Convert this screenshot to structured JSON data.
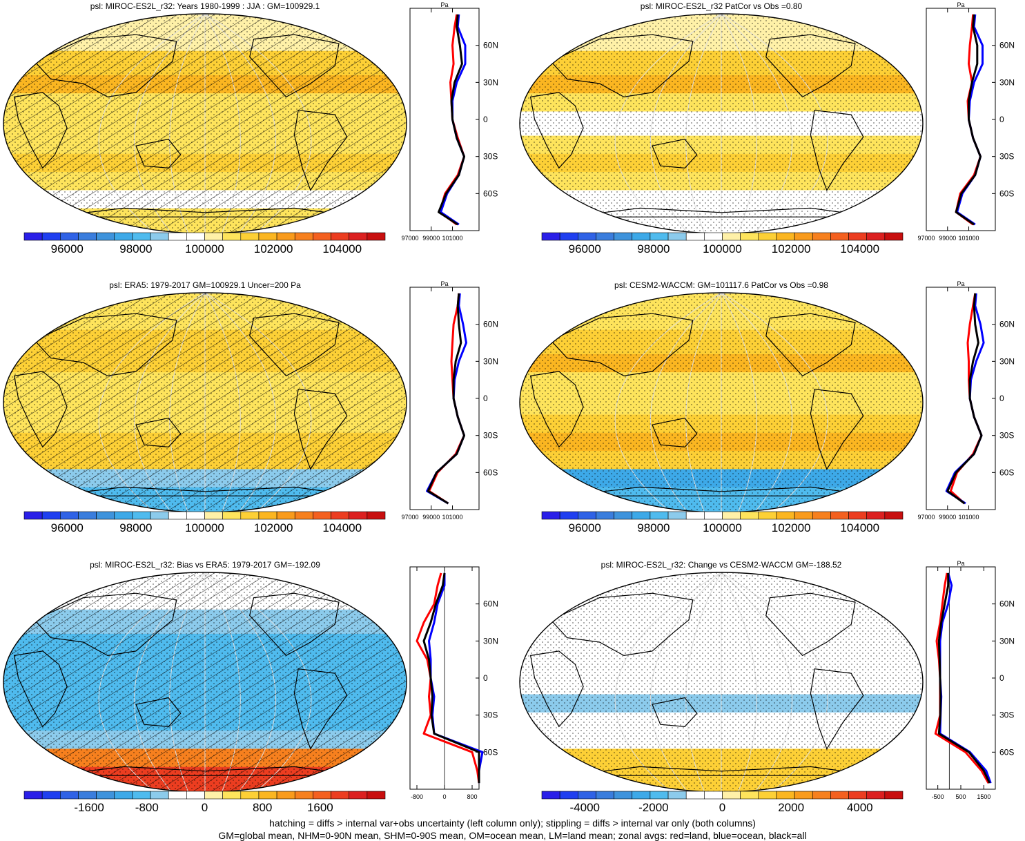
{
  "colors": {
    "scale": [
      "#2a1fe8",
      "#1f3ff0",
      "#2f62e6",
      "#3a7ddd",
      "#3e93dc",
      "#3da9e8",
      "#4fbbee",
      "#8ccbec",
      "#ffffff",
      "#ffffff",
      "#fff1a8",
      "#fee45c",
      "#fdd036",
      "#fbb621",
      "#f99b1c",
      "#f7801e",
      "#f4601f",
      "#ec3d20",
      "#dc2020",
      "#c80f0f"
    ],
    "land": "#ff0000",
    "ocean": "#0000ff",
    "all": "#000000"
  },
  "chart_data": [
    {
      "type": "heatmap",
      "title": "psl: MIROC-ES2L_r32: Years 1980-1999 : JJA : GM=100929.1",
      "colorbar": {
        "ticks": [
          "96000",
          "98000",
          "100000",
          "102000",
          "104000"
        ],
        "min": 94750,
        "max": 105250
      },
      "profile": {
        "unit": "Pa",
        "ylabels": [
          "60N",
          "30N",
          "0",
          "30S",
          "60S"
        ],
        "xticks": [
          "97000",
          "99000",
          "101000"
        ],
        "xlim": [
          97000,
          103500
        ],
        "lat": [
          85,
          75,
          60,
          45,
          30,
          15,
          0,
          -15,
          -30,
          -45,
          -60,
          -75,
          -85
        ],
        "land": [
          101400,
          101200,
          101000,
          101100,
          100800,
          100900,
          101000,
          101500,
          102100,
          101500,
          100300,
          99800,
          101400
        ],
        "ocean": [
          101600,
          101500,
          102200,
          102200,
          101400,
          101000,
          101000,
          101400,
          102100,
          101600,
          100500,
          99900,
          101600
        ],
        "all": [
          101500,
          101400,
          101700,
          101900,
          101200,
          100900,
          101000,
          101400,
          102100,
          101600,
          100400,
          99700,
          101500
        ]
      }
    },
    {
      "type": "heatmap",
      "title": "psl: MIROC-ES2L_r32 PatCor vs Obs =0.80",
      "colorbar": {
        "ticks": [
          "96000",
          "98000",
          "100000",
          "102000",
          "104000"
        ],
        "min": 94750,
        "max": 105250
      },
      "profile": {
        "unit": "Pa",
        "ylabels": [
          "60N",
          "30N",
          "0",
          "30S",
          "60S"
        ],
        "xticks": [
          "97000",
          "99000",
          "101000"
        ],
        "xlim": [
          97000,
          103500
        ],
        "lat": [
          85,
          75,
          60,
          45,
          30,
          15,
          0,
          -15,
          -30,
          -45,
          -60,
          -75,
          -85
        ],
        "land": [
          101400,
          101300,
          101100,
          101000,
          101300,
          100900,
          101000,
          101400,
          102100,
          101500,
          100200,
          99800,
          101400
        ],
        "ocean": [
          101600,
          101500,
          102300,
          102300,
          101500,
          101100,
          101000,
          101400,
          102100,
          101600,
          100400,
          99900,
          101600
        ],
        "all": [
          101500,
          101400,
          101800,
          101800,
          101300,
          101000,
          101000,
          101400,
          102100,
          101600,
          100300,
          99800,
          101500
        ]
      }
    },
    {
      "type": "heatmap",
      "title": "psl: ERA5: 1979-2017 GM=100929.1 Uncer=200 Pa",
      "colorbar": {
        "ticks": [
          "96000",
          "98000",
          "100000",
          "102000",
          "104000"
        ],
        "min": 94750,
        "max": 105250
      },
      "profile": {
        "unit": "Pa",
        "ylabels": [
          "60N",
          "30N",
          "0",
          "30S",
          "60S"
        ],
        "xticks": [
          "97000",
          "99000",
          "101000"
        ],
        "xlim": [
          97000,
          103500
        ],
        "lat": [
          85,
          75,
          60,
          45,
          30,
          15,
          0,
          -15,
          -30,
          -45,
          -60,
          -75,
          -85
        ],
        "land": [
          101600,
          101500,
          101100,
          101000,
          100900,
          101000,
          101100,
          101500,
          102100,
          101300,
          99600,
          98800,
          100600
        ],
        "ocean": [
          101700,
          101600,
          102000,
          102300,
          101600,
          101200,
          101100,
          101500,
          102100,
          101400,
          99500,
          98600,
          100600
        ],
        "all": [
          101600,
          101500,
          101600,
          101800,
          101300,
          101100,
          101100,
          101500,
          102100,
          101400,
          99500,
          98700,
          100600
        ]
      }
    },
    {
      "type": "heatmap",
      "title": "psl: CESM2-WACCM: GM=101117.6 PatCor vs Obs =0.98",
      "colorbar": {
        "ticks": [
          "96000",
          "98000",
          "100000",
          "102000",
          "104000"
        ],
        "min": 94750,
        "max": 105250
      },
      "profile": {
        "unit": "Pa",
        "ylabels": [
          "60N",
          "30N",
          "0",
          "30S",
          "60S"
        ],
        "xticks": [
          "97000",
          "99000",
          "101000"
        ],
        "xlim": [
          97000,
          103500
        ],
        "lat": [
          85,
          75,
          60,
          45,
          30,
          15,
          0,
          -15,
          -30,
          -45,
          -60,
          -75,
          -85
        ],
        "land": [
          101600,
          101400,
          101100,
          100900,
          101000,
          101000,
          101100,
          101500,
          102200,
          101400,
          99900,
          99300,
          100600
        ],
        "ocean": [
          101700,
          101600,
          102100,
          102400,
          101700,
          101200,
          101100,
          101500,
          102200,
          101500,
          99700,
          98900,
          100700
        ],
        "all": [
          101600,
          101500,
          101600,
          101900,
          101400,
          101100,
          101100,
          101500,
          102200,
          101500,
          99800,
          99000,
          100600
        ]
      }
    },
    {
      "type": "heatmap",
      "title": "psl: MIROC-ES2L_r32: Bias vs ERA5: 1979-2017 GM=-192.09",
      "colorbar": {
        "ticks": [
          "-1600",
          "-800",
          "0",
          "800",
          "1600"
        ],
        "min": -2500,
        "max": 2500
      },
      "profile": {
        "unit": "",
        "ylabels": [
          "60N",
          "30N",
          "0",
          "30S",
          "60S"
        ],
        "xticks": [
          "-800",
          "0",
          "800"
        ],
        "xlim": [
          -1000,
          1000
        ],
        "lat": [
          85,
          75,
          60,
          45,
          30,
          15,
          0,
          -15,
          -30,
          -45,
          -60,
          -75,
          -85
        ],
        "land": [
          -100,
          -200,
          -300,
          -600,
          -800,
          -500,
          -400,
          -450,
          -400,
          -600,
          800,
          950,
          1000
        ],
        "ocean": [
          0,
          0,
          -200,
          -300,
          -450,
          -400,
          -400,
          -300,
          -350,
          -300,
          1100,
          1000,
          1000
        ],
        "all": [
          0,
          -50,
          -250,
          -400,
          -600,
          -450,
          -400,
          -350,
          -380,
          -300,
          1000,
          1000,
          1000
        ]
      }
    },
    {
      "type": "heatmap",
      "title": "psl: MIROC-ES2L_r32: Change vs CESM2-WACCM GM=-188.52",
      "colorbar": {
        "ticks": [
          "-4000",
          "-2000",
          "0",
          "2000",
          "4000"
        ],
        "min": -5250,
        "max": 5250
      },
      "profile": {
        "unit": "Pa",
        "ylabels": [
          "60N",
          "30N",
          "0",
          "30S",
          "60S"
        ],
        "xticks": [
          "-500",
          "500",
          "1500"
        ],
        "xlim": [
          -1000,
          2000
        ],
        "lat": [
          85,
          75,
          60,
          45,
          30,
          15,
          0,
          -15,
          -30,
          -45,
          -60,
          -75,
          -85
        ],
        "land": [
          -100,
          -200,
          -300,
          -400,
          -550,
          -450,
          -400,
          -400,
          -400,
          -600,
          700,
          1400,
          1700
        ],
        "ocean": [
          -50,
          100,
          -50,
          -300,
          -400,
          -400,
          -400,
          -350,
          -380,
          -400,
          900,
          1600,
          1800
        ],
        "all": [
          -50,
          -50,
          -200,
          -350,
          -450,
          -420,
          -400,
          -380,
          -390,
          -450,
          850,
          1500,
          1750
        ]
      }
    }
  ],
  "footer": {
    "line1": "hatching = diffs > internal var+obs uncertainty (left column only); stippling = diffs > internal var only (both columns)",
    "line2": "GM=global mean, NHM=0-90N mean, SHM=0-90S mean, OM=ocean mean, LM=land mean; zonal avgs: red=land, blue=ocean, black=all"
  }
}
